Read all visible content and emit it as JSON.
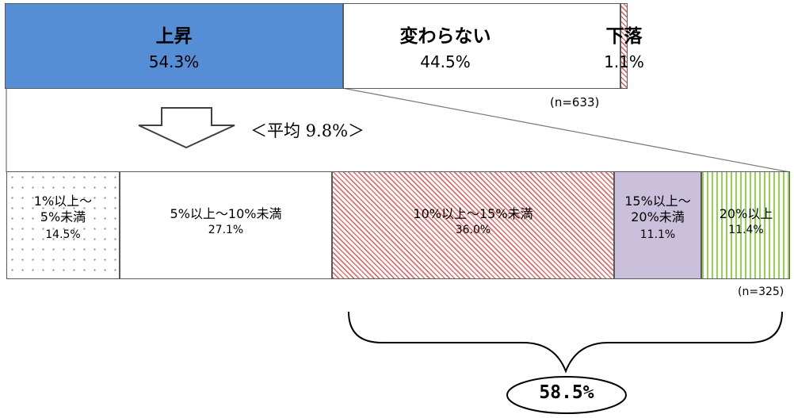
{
  "chart_data": [
    {
      "type": "bar",
      "orientation": "horizontal-stacked-100",
      "categories": [
        "上昇",
        "変わらない",
        "下落"
      ],
      "values": [
        54.3,
        44.5,
        1.1
      ],
      "value_labels": [
        "54.3%",
        "44.5%",
        "1.1%"
      ],
      "n_label": "(n=633)",
      "colors": [
        "#558ed5",
        "#ffffff",
        "#e46c6c"
      ]
    },
    {
      "type": "bar",
      "orientation": "horizontal-stacked-100",
      "categories": [
        "1%以上～5%未満",
        "5%以上～10%未満",
        "10%以上～15%未満",
        "15%以上～20%未満",
        "20%以上"
      ],
      "category_lines": [
        [
          "1%以上～",
          "5%未満"
        ],
        [
          "5%以上～10%未満"
        ],
        [
          "10%以上～15%未満"
        ],
        [
          "15%以上～",
          "20%未満"
        ],
        [
          "20%以上"
        ]
      ],
      "values": [
        14.5,
        27.1,
        36.0,
        11.1,
        11.4
      ],
      "value_labels": [
        "14.5%",
        "27.1%",
        "36.0%",
        "11.1%",
        "11.4%"
      ],
      "n_label": "(n=325)",
      "colors": [
        "dots",
        "#ffffff",
        "#e46c6c",
        "#cbc0dc",
        "#92d050"
      ]
    }
  ],
  "annotations": {
    "average": "＜平均 9.8%＞",
    "bracket_total": "58.5%"
  }
}
